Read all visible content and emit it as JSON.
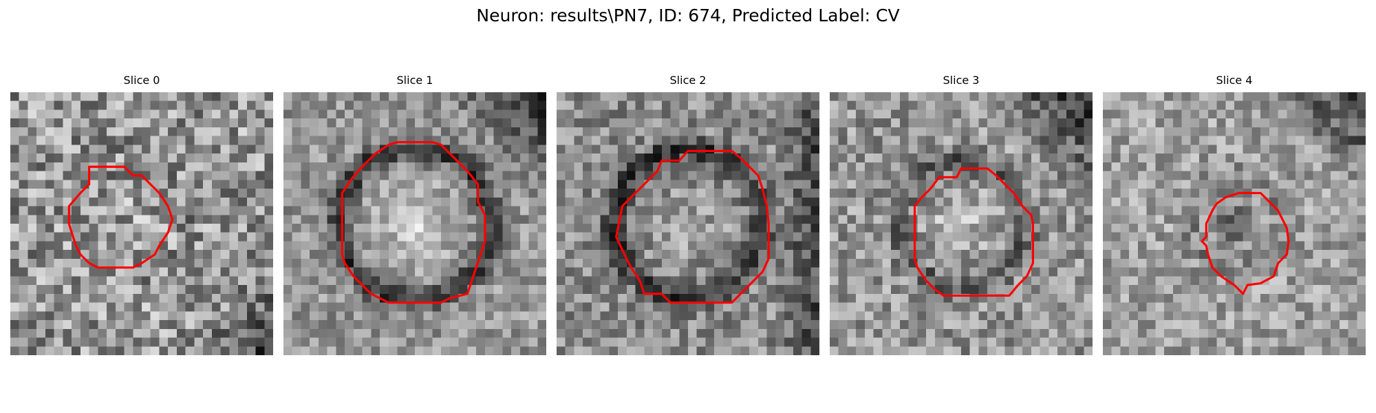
{
  "title": "Neuron: results\\PN7, ID: 674, Predicted Label: CV",
  "contour_color": "#ff0000",
  "panels": [
    {
      "title": "Slice 0",
      "seed": 11,
      "mean": 150,
      "noise": 72,
      "ring_depth": 10,
      "ring_radius": 0.2,
      "center_bright": 15,
      "dark_corner": "bottom-right"
    },
    {
      "title": "Slice 1",
      "seed": 23,
      "mean": 150,
      "noise": 46,
      "ring_depth": 95,
      "ring_radius": 0.29,
      "center_bright": 65,
      "dark_corner": "top-right"
    },
    {
      "title": "Slice 2",
      "seed": 37,
      "mean": 140,
      "noise": 52,
      "ring_depth": 85,
      "ring_radius": 0.28,
      "center_bright": 30,
      "dark_corner": "right"
    },
    {
      "title": "Slice 3",
      "seed": 41,
      "mean": 150,
      "noise": 55,
      "ring_depth": 55,
      "ring_radius": 0.24,
      "center_bright": 45,
      "dark_corner": "top-right"
    },
    {
      "title": "Slice 4",
      "seed": 53,
      "mean": 160,
      "noise": 50,
      "ring_depth": 30,
      "ring_radius": 0.17,
      "center_bright": -75,
      "dark_corner": "top-right"
    }
  ]
}
